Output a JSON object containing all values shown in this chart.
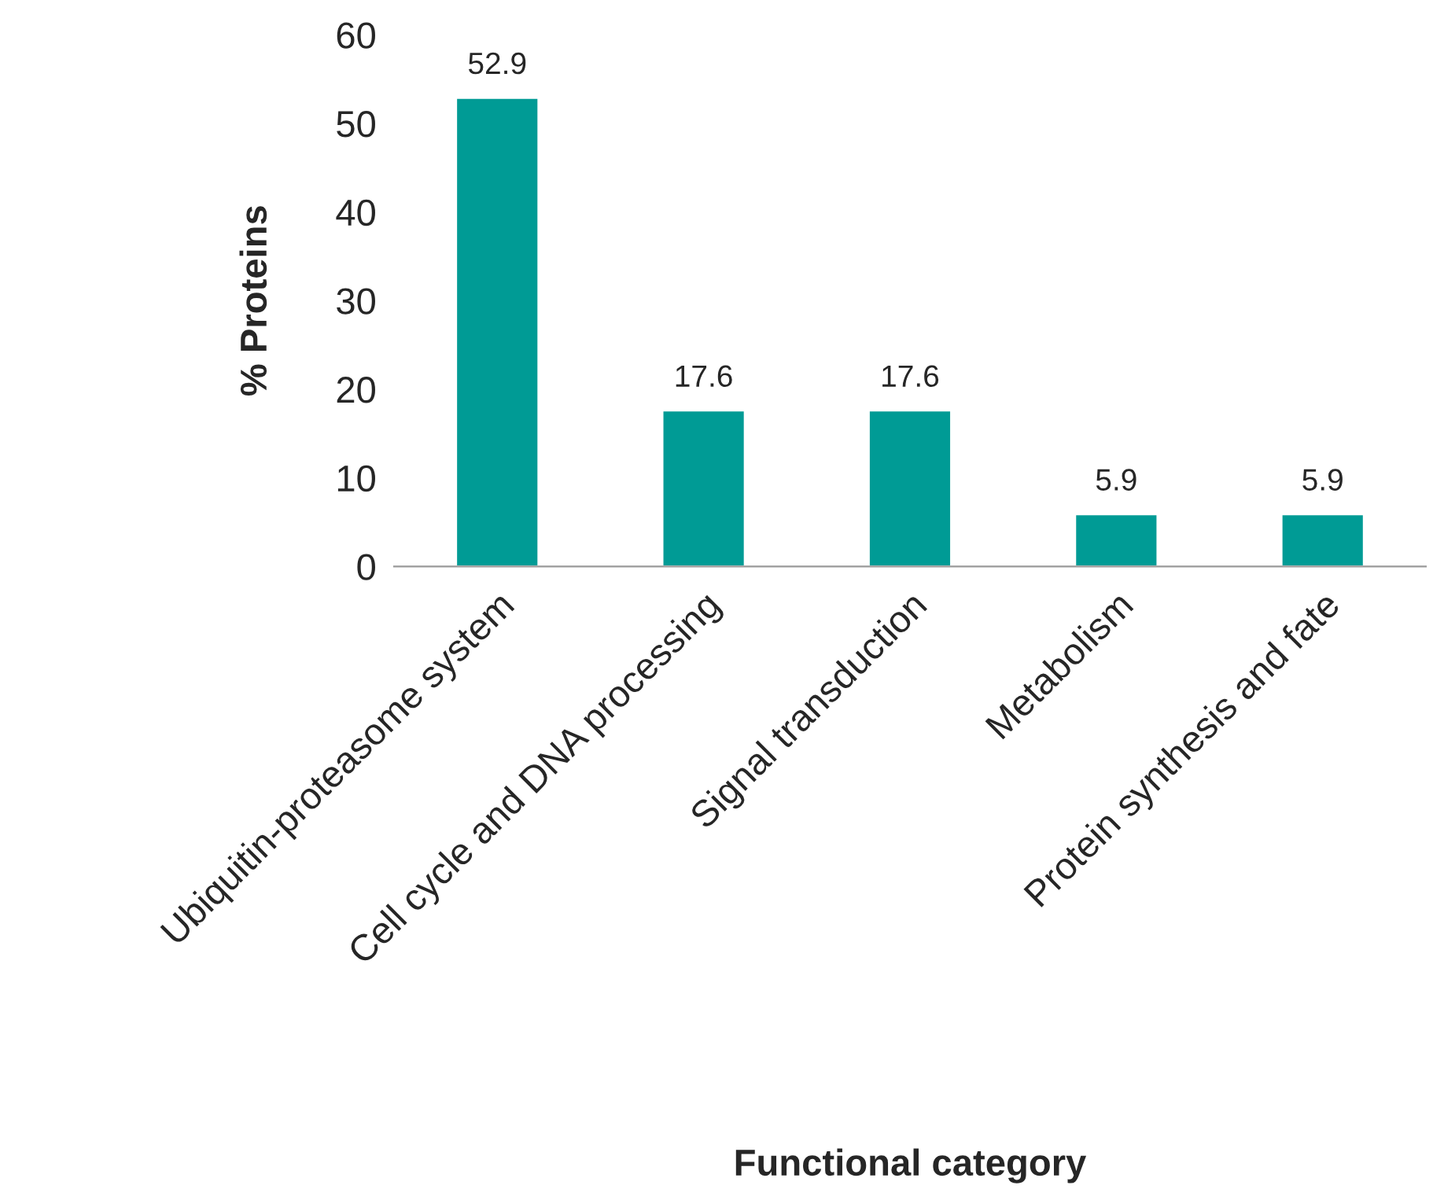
{
  "chart_data": {
    "type": "bar",
    "xlabel": "Functional category",
    "ylabel": "% Proteins",
    "categories": [
      "Ubiquitin-proteasome system",
      "Cell cycle and DNA processing",
      "Signal transduction",
      "Metabolism",
      "Protein synthesis and fate"
    ],
    "values": [
      52.9,
      17.6,
      17.6,
      5.9,
      5.9
    ],
    "color": "#009b95",
    "ylim": [
      0,
      60
    ],
    "yticks": [
      0,
      10,
      20,
      30,
      40,
      50,
      60
    ],
    "data_labels": true,
    "grid": false,
    "legend": false
  }
}
